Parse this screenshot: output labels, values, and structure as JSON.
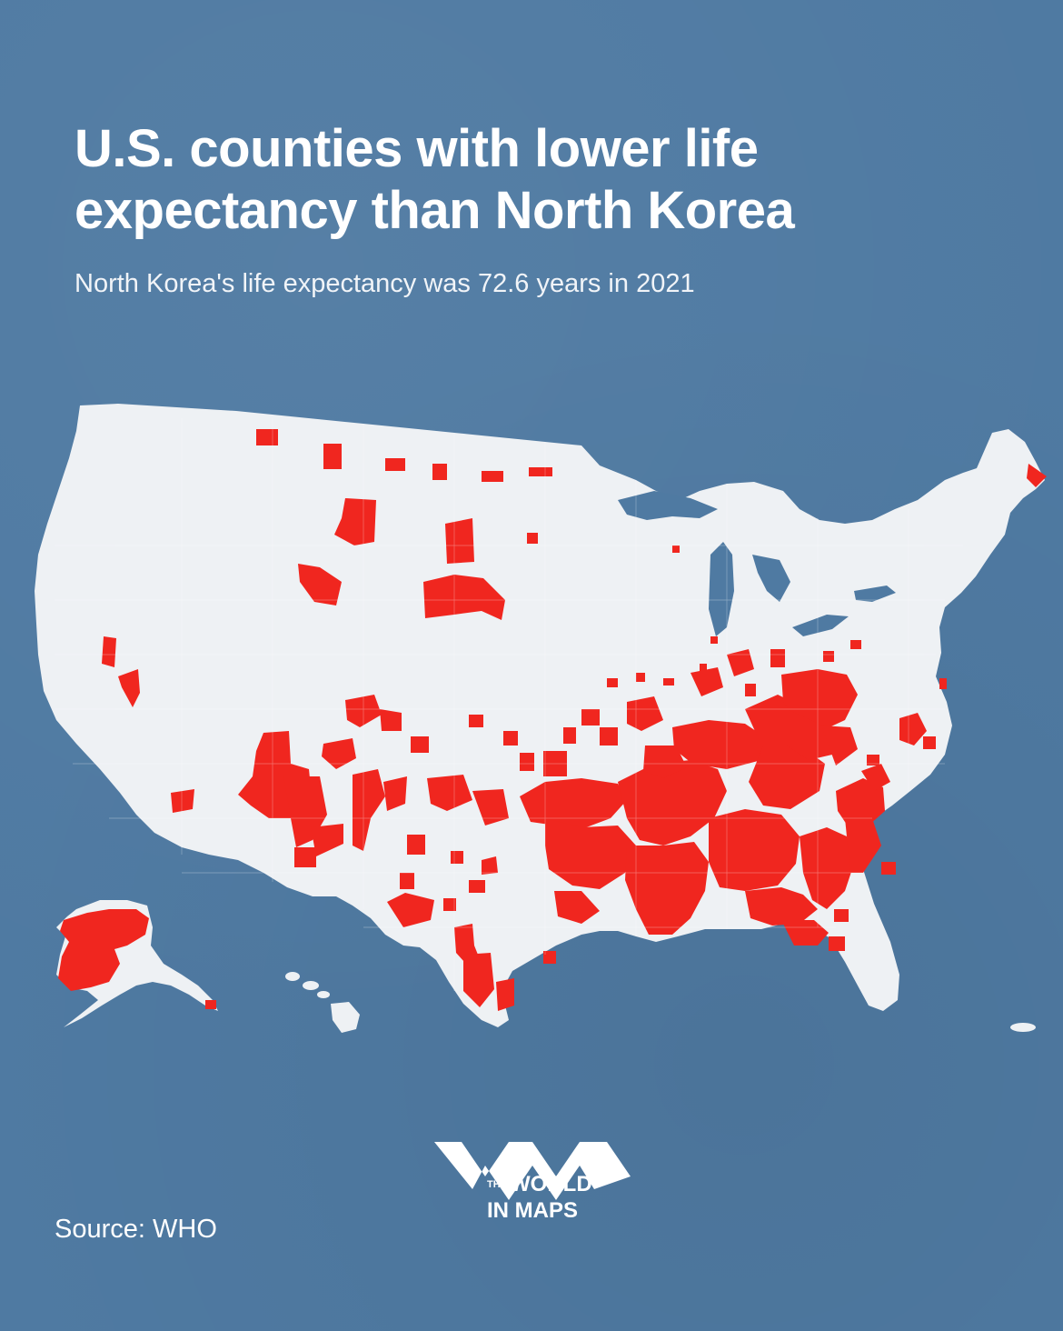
{
  "title": "U.S. counties with lower life expectancy than North Korea",
  "subtitle": "North Korea's life expectancy was 72.6 years in 2021",
  "source": "Source: WHO",
  "logo": {
    "line1_small": "THE",
    "line1": "WORLD",
    "line2": "IN MAPS"
  },
  "colors": {
    "background": "#4f7aa2",
    "land": "#eef1f4",
    "highlight": "#f0261f",
    "text": "#ffffff"
  },
  "icons": {
    "logo_mark": "wm-chevrons-logo"
  }
}
